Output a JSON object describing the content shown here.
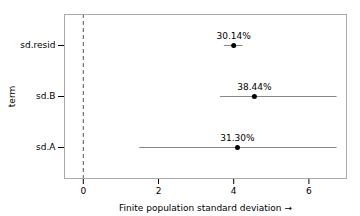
{
  "chart_data": {
    "type": "interval",
    "xlabel": "Finite population standard deviation",
    "ylabel": "term",
    "categories": [
      "sd.resid",
      "sd.B",
      "sd.A"
    ],
    "values": [
      4.0,
      4.55,
      4.1
    ],
    "ci_low": [
      3.75,
      3.65,
      1.5
    ],
    "ci_high": [
      4.25,
      6.75,
      6.75
    ],
    "annotations": [
      "30.14%",
      "38.44%",
      "31.30%"
    ],
    "reference_x": 0,
    "color": "#000000",
    "xlim": [
      -0.5,
      7.0
    ],
    "xticks": [
      0,
      2,
      4,
      6
    ],
    "grid": false
  }
}
